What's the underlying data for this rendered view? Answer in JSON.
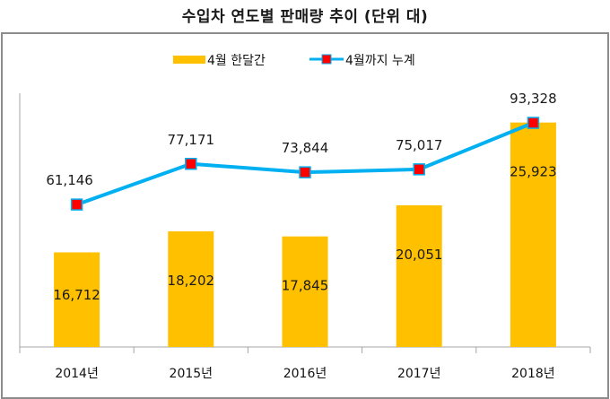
{
  "title": "수입차 연도별 판매량 추이 (단위 대)",
  "colors": {
    "bar": "#FFC000",
    "line": "#00B0F0",
    "marker_fill": "#FF0000",
    "marker_edge": "#00B0F0",
    "axis": "#A6A6A6",
    "frame": "#8C8C8C"
  },
  "chart_data": {
    "type": "bar+line",
    "title": "수입차 연도별 판매량 추이 (단위 대)",
    "xlabel": "",
    "ylabel": "",
    "categories": [
      "2014년",
      "2015년",
      "2016년",
      "2017년",
      "2018년"
    ],
    "series": [
      {
        "name": "4월 한달간",
        "type": "bar",
        "axis": "secondary",
        "values": [
          16712,
          18202,
          17845,
          20051,
          25923
        ],
        "labels": [
          "16,712",
          "18,202",
          "17,845",
          "20,051",
          "25,923"
        ]
      },
      {
        "name": "4월까지 누계",
        "type": "line",
        "axis": "primary",
        "marker": "square",
        "values": [
          61146,
          77171,
          73844,
          75017,
          93328
        ],
        "labels": [
          "61,146",
          "77,171",
          "73,844",
          "75,017",
          "93,328"
        ]
      }
    ],
    "ylim_line": [
      5000,
      105000
    ],
    "ylim_bar": [
      10000,
      28000
    ],
    "grid": false,
    "axes_tick_labels_visible": false,
    "legend_position": "top-center"
  }
}
